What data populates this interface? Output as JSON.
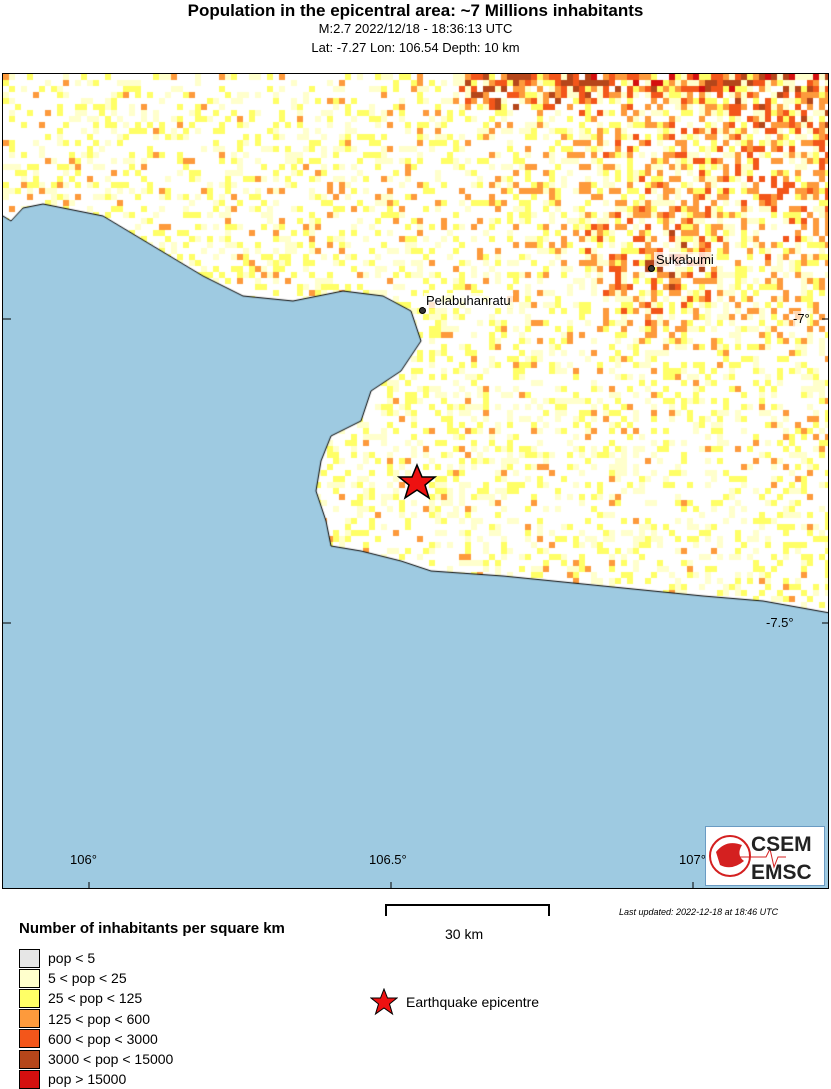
{
  "header": {
    "title": "Population in the epicentral area: ~7 Millions inhabitants",
    "line1": "M:2.7 2022/12/18 - 18:36:13 UTC",
    "line2": "Lat: -7.27 Lon: 106.54 Depth: 10 km"
  },
  "map": {
    "ocean_color": "#9ecae1",
    "lon_ticks": [
      "106°",
      "106.5°",
      "107°"
    ],
    "lat_ticks": [
      "-7°",
      "-7.5°"
    ],
    "cities": [
      {
        "name": "Sukabumi"
      },
      {
        "name": "Pelabuhanratu"
      }
    ],
    "epicenter": {
      "lat": -7.27,
      "lon": 106.54,
      "color": "#ee1111"
    },
    "logo": {
      "top": "CSEM",
      "bottom": "EMSC"
    }
  },
  "scale": {
    "label": "30 km"
  },
  "updated": "Last updated: 2022-12-18 at 18:46 UTC",
  "legend": {
    "title": "Number of inhabitants per square km",
    "items": [
      {
        "label": "pop < 5",
        "color": "#e6e6e6"
      },
      {
        "label": "5 < pop < 25",
        "color": "#ffffcc"
      },
      {
        "label": "25 < pop < 125",
        "color": "#ffff66"
      },
      {
        "label": "125 < pop < 600",
        "color": "#fd9a3c"
      },
      {
        "label": "600 < pop < 3000",
        "color": "#f3561a"
      },
      {
        "label": "3000 < pop < 15000",
        "color": "#b5461a"
      },
      {
        "label": "pop > 15000",
        "color": "#d40f0f"
      }
    ],
    "epicentre_label": "Earthquake epicentre"
  }
}
